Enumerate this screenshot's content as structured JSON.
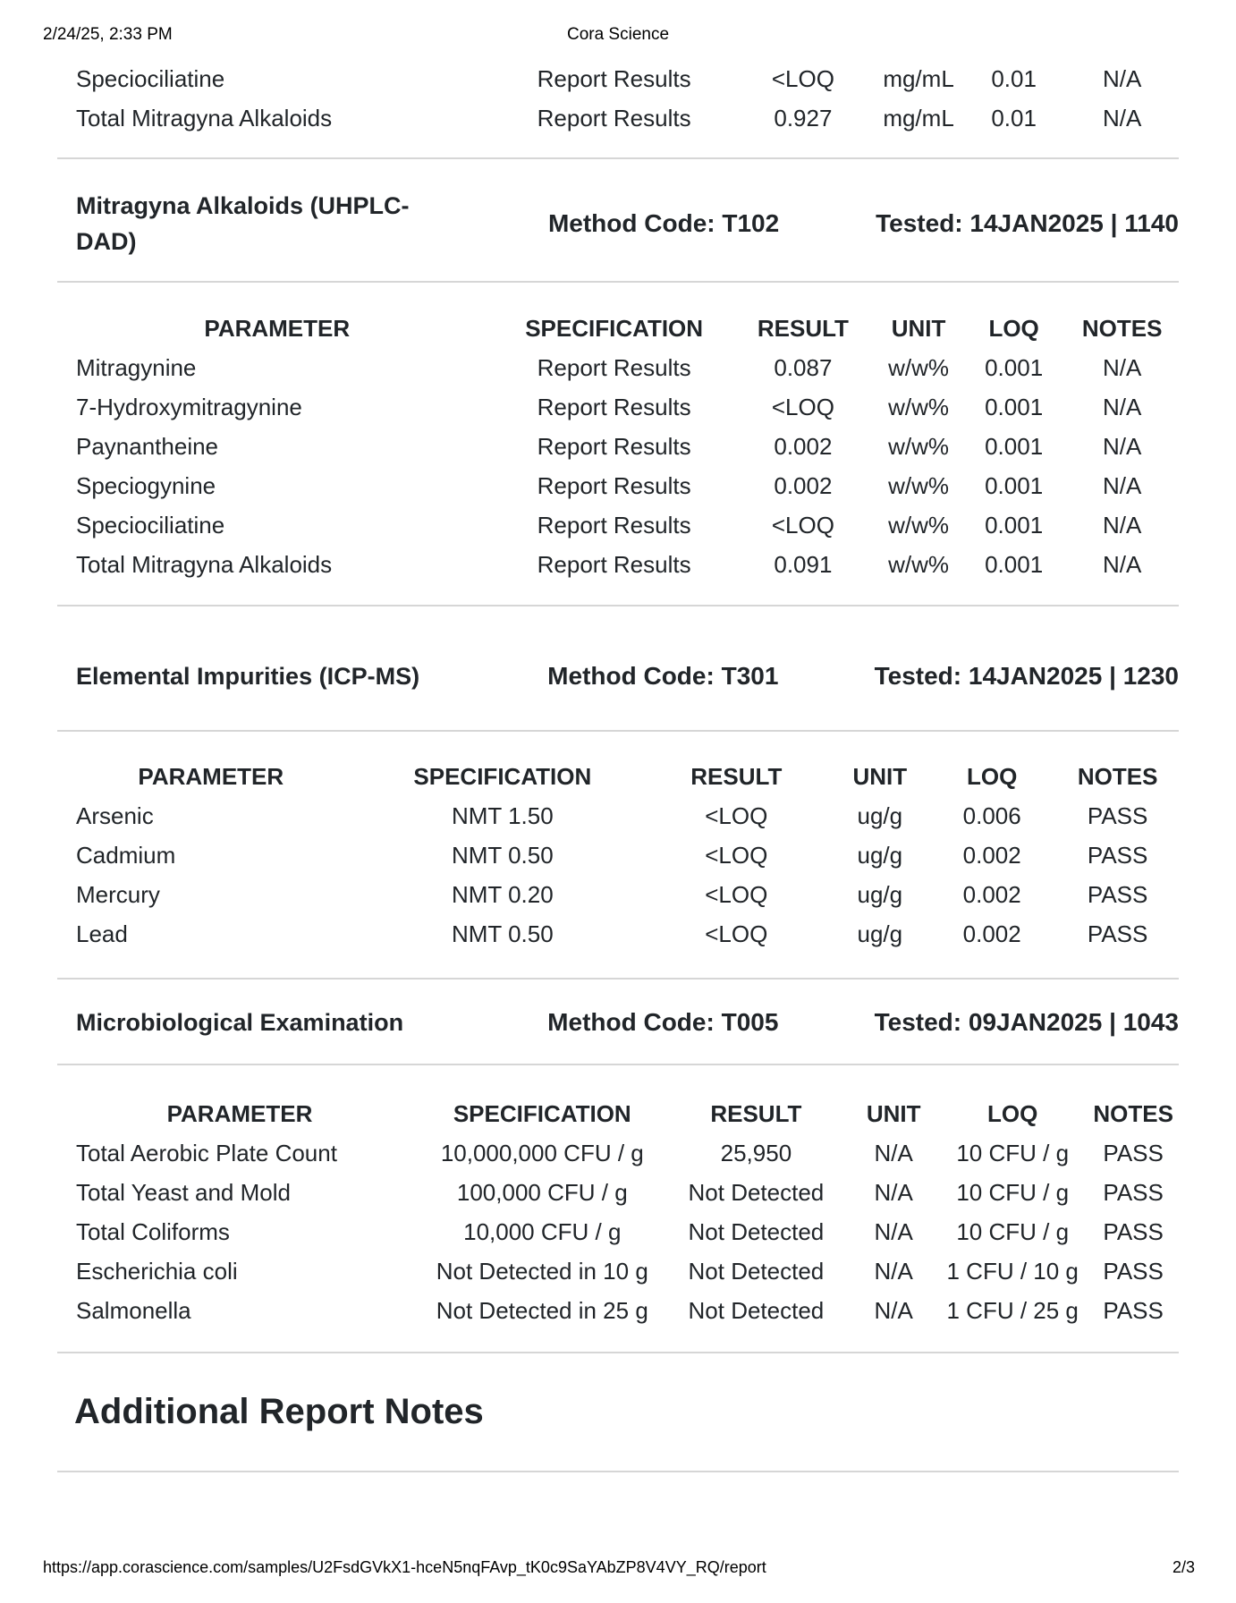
{
  "page_header": {
    "datetime": "2/24/25, 2:33 PM",
    "title": "Cora Science"
  },
  "continuation_table": {
    "rows": [
      [
        "Speciociliatine",
        "Report Results",
        "<LOQ",
        "mg/mL",
        "0.01",
        "N/A"
      ],
      [
        "Total Mitragyna Alkaloids",
        "Report Results",
        "0.927",
        "mg/mL",
        "0.01",
        "N/A"
      ]
    ]
  },
  "sections": [
    {
      "title": "Mitragyna Alkaloids (UHPLC-DAD)",
      "method_code": "Method Code: T102",
      "tested": "Tested: 14JAN2025 | 1140",
      "table": {
        "columns": [
          "PARAMETER",
          "SPECIFICATION",
          "RESULT",
          "UNIT",
          "LOQ",
          "NOTES"
        ],
        "rows": [
          [
            "Mitragynine",
            "Report Results",
            "0.087",
            "w/w%",
            "0.001",
            "N/A"
          ],
          [
            "7-Hydroxymitragynine",
            "Report Results",
            "<LOQ",
            "w/w%",
            "0.001",
            "N/A"
          ],
          [
            "Paynantheine",
            "Report Results",
            "0.002",
            "w/w%",
            "0.001",
            "N/A"
          ],
          [
            "Speciogynine",
            "Report Results",
            "0.002",
            "w/w%",
            "0.001",
            "N/A"
          ],
          [
            "Speciociliatine",
            "Report Results",
            "<LOQ",
            "w/w%",
            "0.001",
            "N/A"
          ],
          [
            "Total Mitragyna Alkaloids",
            "Report Results",
            "0.091",
            "w/w%",
            "0.001",
            "N/A"
          ]
        ]
      }
    },
    {
      "title": "Elemental Impurities (ICP-MS)",
      "method_code": "Method Code: T301",
      "tested": "Tested: 14JAN2025 | 1230",
      "table": {
        "columns": [
          "PARAMETER",
          "SPECIFICATION",
          "RESULT",
          "UNIT",
          "LOQ",
          "NOTES"
        ],
        "rows": [
          [
            "Arsenic",
            "NMT 1.50",
            "<LOQ",
            "ug/g",
            "0.006",
            "PASS"
          ],
          [
            "Cadmium",
            "NMT 0.50",
            "<LOQ",
            "ug/g",
            "0.002",
            "PASS"
          ],
          [
            "Mercury",
            "NMT 0.20",
            "<LOQ",
            "ug/g",
            "0.002",
            "PASS"
          ],
          [
            "Lead",
            "NMT 0.50",
            "<LOQ",
            "ug/g",
            "0.002",
            "PASS"
          ]
        ]
      }
    },
    {
      "title": "Microbiological Examination",
      "method_code": "Method Code: T005",
      "tested": "Tested: 09JAN2025 | 1043",
      "table": {
        "columns": [
          "PARAMETER",
          "SPECIFICATION",
          "RESULT",
          "UNIT",
          "LOQ",
          "NOTES"
        ],
        "rows": [
          [
            "Total Aerobic Plate Count",
            "10,000,000 CFU / g",
            "25,950",
            "N/A",
            "10 CFU / g",
            "PASS"
          ],
          [
            "Total Yeast and Mold",
            "100,000 CFU / g",
            "Not Detected",
            "N/A",
            "10 CFU / g",
            "PASS"
          ],
          [
            "Total Coliforms",
            "10,000 CFU / g",
            "Not Detected",
            "N/A",
            "10 CFU / g",
            "PASS"
          ],
          [
            "Escherichia coli",
            "Not Detected in 10 g",
            "Not Detected",
            "N/A",
            "1 CFU / 10 g",
            "PASS"
          ],
          [
            "Salmonella",
            "Not Detected in 25 g",
            "Not Detected",
            "N/A",
            "1 CFU / 25 g",
            "PASS"
          ]
        ]
      }
    }
  ],
  "notes": {
    "title": "Additional Report Notes"
  },
  "footer": {
    "url": "https://app.corascience.com/samples/U2FsdGVkX1-hceN5nqFAvp_tK0c9SaYAbZP8V4VY_RQ/report",
    "page_indicator": "2/3"
  },
  "colors": {
    "text": "#212529",
    "print_chrome_text": "#000000",
    "divider": "#d6d6d6",
    "background": "#ffffff"
  }
}
